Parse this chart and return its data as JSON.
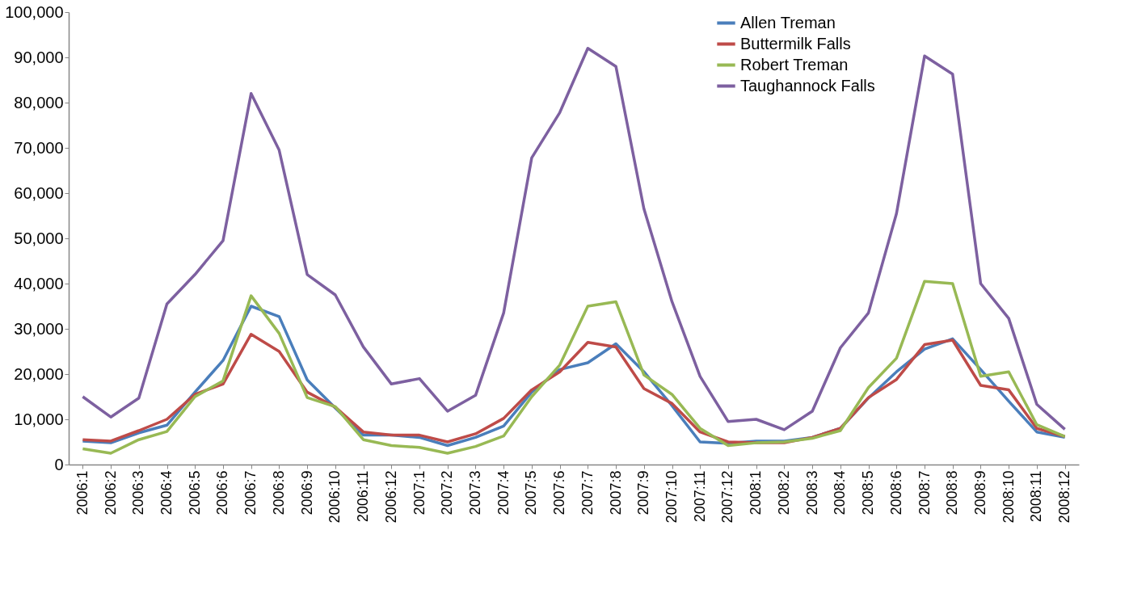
{
  "chart_data": {
    "type": "line",
    "categories": [
      "2006:1",
      "2006:2",
      "2006:3",
      "2006:4",
      "2006:5",
      "2006:6",
      "2006:7",
      "2006:8",
      "2006:9",
      "2006:10",
      "2006:11",
      "2006:12",
      "2007:1",
      "2007:2",
      "2007:3",
      "2007:4",
      "2007:5",
      "2007:6",
      "2007:7",
      "2007:8",
      "2007:9",
      "2007:10",
      "2007:11",
      "2007:12",
      "2008:1",
      "2008:2",
      "2008:3",
      "2008:4",
      "2008:5",
      "2008:6",
      "2008:7",
      "2008:8",
      "2008:9",
      "2008:10",
      "2008:11",
      "2008:12"
    ],
    "series": [
      {
        "name": "Allen Treman",
        "color": "#4a7ebb",
        "values": [
          5200,
          4800,
          7000,
          8700,
          16000,
          23000,
          35000,
          32700,
          18700,
          12500,
          6500,
          6500,
          6000,
          4200,
          6000,
          8500,
          16000,
          21000,
          22500,
          26700,
          20500,
          13000,
          5000,
          4700,
          5200,
          5200,
          6000,
          8000,
          14700,
          20500,
          25500,
          27800,
          21000,
          14000,
          7200,
          6000
        ]
      },
      {
        "name": "Buttermilk Falls",
        "color": "#be4b48",
        "values": [
          5500,
          5200,
          7500,
          10000,
          15500,
          17800,
          28800,
          25000,
          16000,
          12700,
          7200,
          6500,
          6500,
          5000,
          6800,
          10200,
          16500,
          20500,
          27000,
          26000,
          16800,
          13500,
          7200,
          5000,
          4800,
          4800,
          6000,
          8000,
          14800,
          18800,
          26500,
          27500,
          17500,
          16500,
          8000,
          6200
        ]
      },
      {
        "name": "Robert Treman",
        "color": "#98b954",
        "values": [
          3500,
          2500,
          5500,
          7300,
          15000,
          18500,
          37300,
          29000,
          14800,
          12800,
          5500,
          4200,
          3800,
          2500,
          4000,
          6300,
          15000,
          22000,
          35000,
          36000,
          19800,
          15500,
          8000,
          4200,
          4800,
          5000,
          5800,
          7500,
          17000,
          23500,
          40500,
          40000,
          19500,
          20500,
          8800,
          6200
        ]
      },
      {
        "name": "Taughannock Falls",
        "color": "#7d60a0",
        "values": [
          15000,
          10500,
          14700,
          35500,
          42000,
          49500,
          82000,
          69500,
          42000,
          37500,
          26000,
          17800,
          19000,
          11800,
          15300,
          33500,
          67800,
          77800,
          92000,
          88000,
          56500,
          36000,
          19500,
          9500,
          10000,
          7700,
          11800,
          25800,
          33500,
          55500,
          90300,
          86300,
          40000,
          32300,
          13300,
          7800
        ]
      }
    ],
    "ylim": [
      0,
      100000
    ],
    "yticks": [
      0,
      {
        "value": 10000,
        "label": "10,000"
      },
      {
        "value": 20000,
        "label": "20,000"
      },
      {
        "value": 30000,
        "label": "30,000"
      },
      {
        "value": 40000,
        "label": "40,000"
      },
      {
        "value": 50000,
        "label": "50,000"
      },
      {
        "value": 60000,
        "label": "60,000"
      },
      {
        "value": 70000,
        "label": "70,000"
      },
      {
        "value": 80000,
        "label": "80,000"
      },
      {
        "value": 90000,
        "label": "90,000"
      },
      {
        "value": 100000,
        "label": "100,000"
      }
    ],
    "grid": false,
    "legend": "top right",
    "marker": "none",
    "line_style": "solid"
  }
}
